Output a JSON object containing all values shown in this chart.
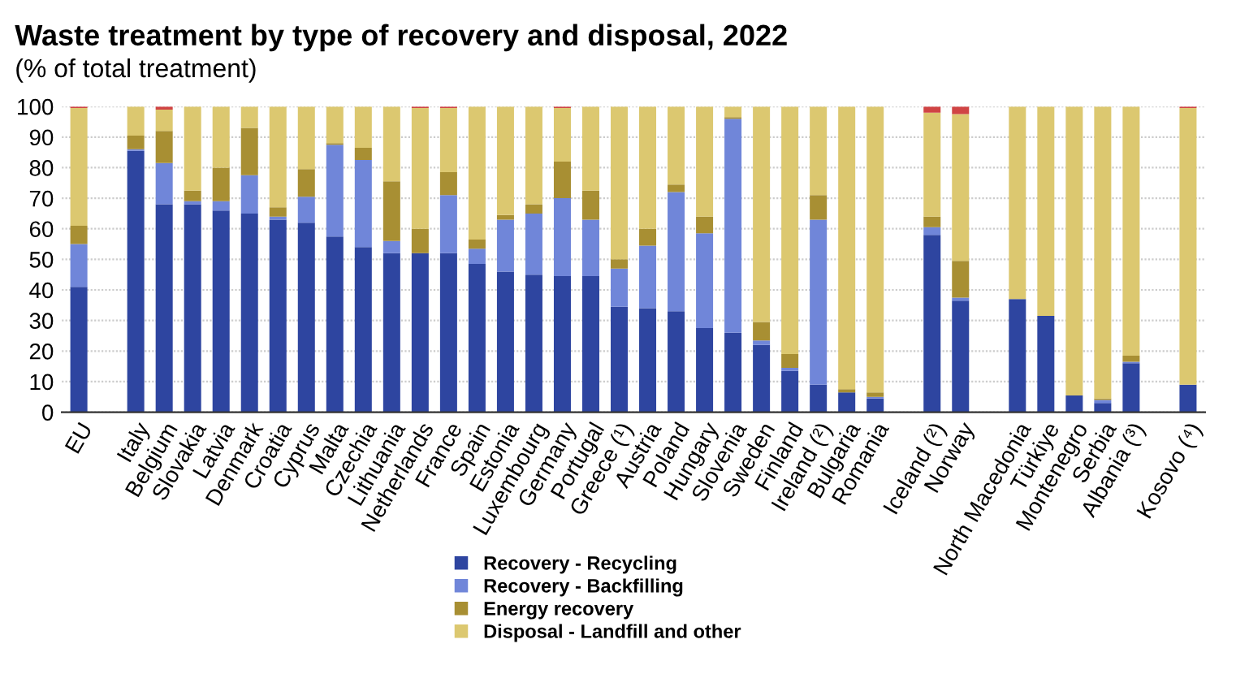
{
  "chart_data": {
    "type": "bar",
    "stacked": true,
    "title": "Waste treatment by type of recovery and disposal, 2022",
    "subtitle": "(% of total treatment)",
    "categories": [
      "EU",
      null,
      "Italy",
      "Belgium",
      "Slovakia",
      "Latvia",
      "Denmark",
      "Croatia",
      "Cyprus",
      "Malta",
      "Czechia",
      "Lithuania",
      "Netherlands",
      "France",
      "Spain",
      "Estonia",
      "Luxembourg",
      "Germany",
      "Portugal",
      "Greece (¹)",
      "Austria",
      "Poland",
      "Hungary",
      "Slovenia",
      "Sweden",
      "Finland",
      "Ireland (²)",
      "Bulgaria",
      "Romania",
      null,
      "Iceland (²)",
      "Norway",
      null,
      "North Macedonia",
      "Türkiye",
      "Montenegro",
      "Serbia",
      "Albania (³)",
      null,
      "Kosovo (⁴)"
    ],
    "series": [
      {
        "name": "Recovery - Recycling",
        "color": "#2e45a0",
        "values": [
          41,
          null,
          85.5,
          68,
          68,
          66,
          65,
          63,
          62,
          57.5,
          54,
          52,
          52,
          52,
          48.5,
          46,
          45,
          44.5,
          44.5,
          34.5,
          34,
          33,
          27.5,
          26,
          22,
          13.5,
          9,
          6.5,
          4.5,
          null,
          58,
          36.5,
          null,
          37,
          31.5,
          5.5,
          3,
          16,
          null,
          9
        ]
      },
      {
        "name": "Recovery - Backfilling",
        "color": "#7086d9",
        "values": [
          14,
          null,
          0.5,
          13.5,
          1,
          3,
          12.5,
          1,
          8.5,
          30,
          28.5,
          4,
          0,
          19,
          5,
          17,
          20,
          25.5,
          18.5,
          12.5,
          20.5,
          39,
          31,
          70,
          1.5,
          1,
          54,
          0,
          0.5,
          null,
          2.5,
          1,
          null,
          0,
          0,
          0,
          1,
          0.5,
          null,
          0
        ]
      },
      {
        "name": "Energy recovery",
        "color": "#a88f33",
        "values": [
          6,
          null,
          4.5,
          10.5,
          3.5,
          11,
          15.5,
          3,
          9,
          0.5,
          4,
          19.5,
          8,
          7.5,
          3,
          1.5,
          3,
          12,
          9.5,
          3,
          5.5,
          2.5,
          5.5,
          0.5,
          6,
          4.5,
          8,
          1,
          1.5,
          null,
          3.5,
          12,
          null,
          0,
          0,
          0,
          0.5,
          2,
          null,
          0
        ]
      },
      {
        "name": "Disposal - Landfill and other",
        "color": "#dcc870",
        "values": [
          38.5,
          null,
          9.5,
          7,
          27.5,
          20,
          7,
          33,
          20.5,
          12,
          13.5,
          24.5,
          39.5,
          21,
          43.5,
          35.5,
          32,
          17.5,
          27.5,
          50,
          40,
          25.5,
          36,
          3.5,
          70.5,
          81,
          29,
          92.5,
          93.5,
          null,
          34,
          48,
          null,
          63,
          68.5,
          94.5,
          95.5,
          81.5,
          null,
          90.5
        ]
      },
      {
        "color": "#d04444",
        "values": [
          0.5,
          null,
          0,
          1,
          0,
          0,
          0,
          0,
          0,
          0,
          0,
          0,
          0.5,
          0.5,
          0,
          0,
          0,
          0.5,
          0,
          0,
          0,
          0,
          0,
          0,
          0,
          0,
          0,
          0,
          0,
          null,
          2,
          2.5,
          null,
          0,
          0,
          0,
          0,
          0,
          null,
          0.5
        ]
      }
    ],
    "ylim": [
      0,
      100
    ],
    "yticks": [
      0,
      10,
      20,
      30,
      40,
      50,
      60,
      70,
      80,
      90,
      100
    ],
    "grid": "y",
    "legend": "bottom"
  }
}
